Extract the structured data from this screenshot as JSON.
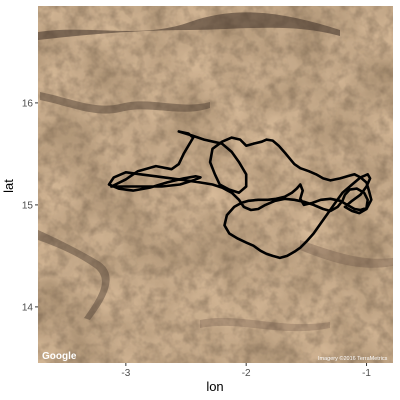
{
  "chart_data": {
    "type": "line",
    "plot_kind": "map-track",
    "xlabel": "lon",
    "ylabel": "lat",
    "x_ticks": [
      -3,
      -2,
      -1
    ],
    "y_ticks": [
      14,
      15,
      16
    ],
    "xlim": [
      -3.73,
      -0.78
    ],
    "ylim": [
      13.45,
      16.95
    ],
    "grid": false,
    "legend": "none",
    "basemap": {
      "kind": "satellite imagery",
      "logo": "Google",
      "attribution": "Imagery ©2016 TerraMetrics"
    },
    "track_color": "#000000",
    "series": [
      {
        "x": [
          -3.12,
          -3.0,
          -2.9,
          -2.75,
          -2.62,
          -2.56,
          -2.52,
          -2.47,
          -2.44,
          -2.48,
          -2.56,
          -2.45,
          -2.35,
          -2.2,
          -2.12,
          -2.06,
          -2.0,
          -2.0,
          -2.06,
          -2.14,
          -2.22,
          -2.26,
          -2.3,
          -2.28,
          -2.2,
          -2.12,
          -2.05,
          -2.0,
          -1.94,
          -1.87,
          -1.83,
          -1.78,
          -1.73,
          -1.67,
          -1.6,
          -1.55,
          -1.48,
          -1.42,
          -1.36,
          -1.3,
          -1.22,
          -1.16,
          -1.1,
          -1.05,
          -1.0,
          -0.98,
          -0.96,
          -1.0,
          -1.06,
          -1.12,
          -1.18,
          -1.12,
          -1.05,
          -1.0,
          -0.97,
          -0.99,
          -1.05,
          -1.12,
          -1.2,
          -1.26,
          -1.32,
          -1.38,
          -1.44,
          -1.5,
          -1.55,
          -1.6,
          -1.66,
          -1.72,
          -1.78,
          -1.83,
          -1.88,
          -1.94,
          -2.0,
          -2.07,
          -2.14,
          -2.18,
          -2.16,
          -2.1,
          -2.04,
          -1.98,
          -1.9,
          -1.82,
          -1.75,
          -1.68,
          -1.62,
          -1.58,
          -1.55,
          -1.53,
          -1.55,
          -1.52,
          -1.45,
          -1.38,
          -1.3,
          -1.22,
          -1.16,
          -1.1,
          -1.05,
          -1.0,
          -0.99,
          -1.02,
          -1.08,
          -1.14,
          -1.18,
          -1.2,
          -1.24,
          -1.3,
          -1.36,
          -1.44,
          -1.52,
          -1.6,
          -1.68,
          -1.76,
          -1.84,
          -1.9,
          -1.96,
          -2.02,
          -2.06,
          -2.12,
          -2.2,
          -2.28,
          -2.38,
          -2.5,
          -2.62,
          -2.75,
          -2.88,
          -3.0,
          -3.1,
          -3.14,
          -3.06,
          -2.94,
          -2.8,
          -2.66,
          -2.52,
          -2.42,
          -2.38,
          -2.44,
          -2.55,
          -2.7,
          -2.86,
          -3.0,
          -3.12
        ],
        "y": [
          15.18,
          15.25,
          15.33,
          15.38,
          15.35,
          15.4,
          15.5,
          15.6,
          15.66,
          15.7,
          15.72,
          15.68,
          15.64,
          15.6,
          15.52,
          15.42,
          15.3,
          15.18,
          15.12,
          15.15,
          15.2,
          15.3,
          15.42,
          15.55,
          15.62,
          15.66,
          15.64,
          15.58,
          15.6,
          15.62,
          15.64,
          15.63,
          15.58,
          15.5,
          15.4,
          15.36,
          15.33,
          15.3,
          15.26,
          15.24,
          15.26,
          15.28,
          15.3,
          15.27,
          15.22,
          15.14,
          15.05,
          14.96,
          14.92,
          14.94,
          14.98,
          15.04,
          15.1,
          15.18,
          15.26,
          15.3,
          15.27,
          15.2,
          15.12,
          15.02,
          14.92,
          14.82,
          14.72,
          14.64,
          14.58,
          14.54,
          14.5,
          14.48,
          14.5,
          14.52,
          14.55,
          14.6,
          14.63,
          14.67,
          14.72,
          14.8,
          14.9,
          14.98,
          15.02,
          15.04,
          15.05,
          15.05,
          15.06,
          15.08,
          15.12,
          15.16,
          15.2,
          15.14,
          15.06,
          15.0,
          15.02,
          15.05,
          15.06,
          15.04,
          15.0,
          14.96,
          14.95,
          14.97,
          15.05,
          15.12,
          15.16,
          15.15,
          15.1,
          15.04,
          14.98,
          14.94,
          14.96,
          15.0,
          15.03,
          15.05,
          15.06,
          15.04,
          15.0,
          14.96,
          14.95,
          14.98,
          15.05,
          15.12,
          15.17,
          15.2,
          15.22,
          15.24,
          15.26,
          15.28,
          15.3,
          15.32,
          15.27,
          15.2,
          15.16,
          15.14,
          15.17,
          15.22,
          15.26,
          15.28,
          15.27,
          15.24,
          15.2,
          15.18,
          15.18,
          15.18,
          15.18
        ]
      }
    ]
  }
}
